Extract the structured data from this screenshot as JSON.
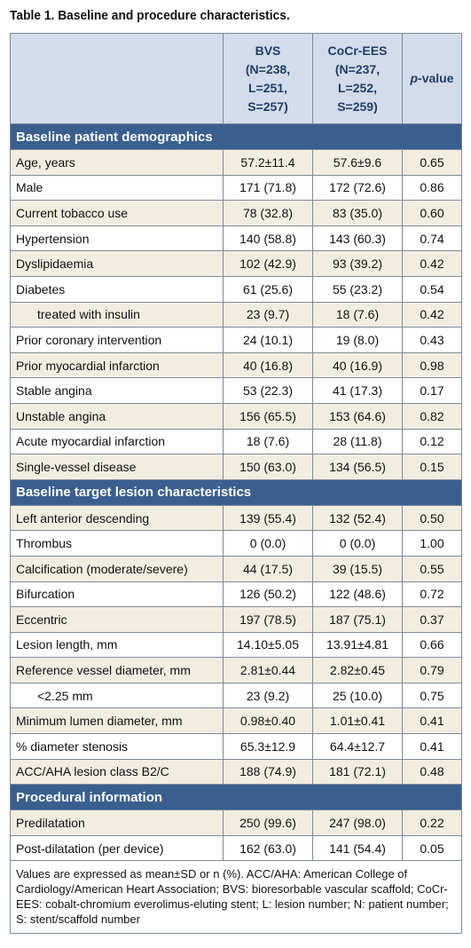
{
  "title": "Table 1. Baseline and procedure characteristics.",
  "header": {
    "col1": [
      "BVS",
      "(N=238,",
      "L=251,",
      "S=257)"
    ],
    "col2": [
      "CoCr-EES",
      "(N=237,",
      "L=252,",
      "S=259)"
    ],
    "col3_italic": "p",
    "col3_rest": "-value"
  },
  "sections": [
    {
      "title": "Baseline patient demographics",
      "rows": [
        {
          "label": "Age, years",
          "a": "57.2±11.4",
          "b": "57.6±9.6",
          "p": "0.65"
        },
        {
          "label": "Male",
          "a": "171 (71.8)",
          "b": "172 (72.6)",
          "p": "0.86"
        },
        {
          "label": "Current tobacco use",
          "a": "78 (32.8)",
          "b": "83 (35.0)",
          "p": "0.60"
        },
        {
          "label": "Hypertension",
          "a": "140 (58.8)",
          "b": "143 (60.3)",
          "p": "0.74"
        },
        {
          "label": "Dyslipidaemia",
          "a": "102 (42.9)",
          "b": "93 (39.2)",
          "p": "0.42"
        },
        {
          "label": "Diabetes",
          "a": "61 (25.6)",
          "b": "55 (23.2)",
          "p": "0.54"
        },
        {
          "label": "treated with insulin",
          "a": "23 (9.7)",
          "b": "18 (7.6)",
          "p": "0.42"
        },
        {
          "label": "Prior coronary intervention",
          "a": "24 (10.1)",
          "b": "19 (8.0)",
          "p": "0.43"
        },
        {
          "label": "Prior myocardial infarction",
          "a": "40 (16.8)",
          "b": "40 (16.9)",
          "p": "0.98"
        },
        {
          "label": "Stable angina",
          "a": "53 (22.3)",
          "b": "41 (17.3)",
          "p": "0.17"
        },
        {
          "label": "Unstable angina",
          "a": "156 (65.5)",
          "b": "153 (64.6)",
          "p": "0.82"
        },
        {
          "label": "Acute myocardial infarction",
          "a": "18 (7.6)",
          "b": "28 (11.8)",
          "p": "0.12"
        },
        {
          "label": "Single-vessel disease",
          "a": "150 (63.0)",
          "b": "134 (56.5)",
          "p": "0.15"
        }
      ]
    },
    {
      "title": "Baseline target lesion characteristics",
      "rows": [
        {
          "label": "Left anterior descending",
          "a": "139 (55.4)",
          "b": "132 (52.4)",
          "p": "0.50"
        },
        {
          "label": "Thrombus",
          "a": "0 (0.0)",
          "b": "0 (0.0)",
          "p": "1.00"
        },
        {
          "label": "Calcification (moderate/severe)",
          "a": "44 (17.5)",
          "b": "39 (15.5)",
          "p": "0.55"
        },
        {
          "label": "Bifurcation",
          "a": "126 (50.2)",
          "b": "122 (48.6)",
          "p": "0.72"
        },
        {
          "label": "Eccentric",
          "a": "197 (78.5)",
          "b": "187 (75.1)",
          "p": "0.37"
        },
        {
          "label": "Lesion length, mm",
          "a": "14.10±5.05",
          "b": "13.91±4.81",
          "p": "0.66"
        },
        {
          "label": "Reference vessel diameter, mm",
          "a": "2.81±0.44",
          "b": "2.82±0.45",
          "p": "0.79"
        },
        {
          "label": "<2.25 mm",
          "a": "23 (9.2)",
          "b": "25 (10.0)",
          "p": "0.75"
        },
        {
          "label": "Minimum lumen diameter, mm",
          "a": "0.98±0.40",
          "b": "1.01±0.41",
          "p": "0.41"
        },
        {
          "label": "% diameter stenosis",
          "a": "65.3±12.9",
          "b": "64.4±12.7",
          "p": "0.41"
        },
        {
          "label": "ACC/AHA lesion class B2/C",
          "a": "188 (74.9)",
          "b": "181 (72.1)",
          "p": "0.48"
        }
      ]
    },
    {
      "title": "Procedural information",
      "rows": [
        {
          "label": "Predilatation",
          "a": "250 (99.6)",
          "b": "247 (98.0)",
          "p": "0.22"
        },
        {
          "label": "Post-dilatation (per device)",
          "a": "162 (63.0)",
          "b": "141 (54.4)",
          "p": "0.05"
        }
      ]
    }
  ],
  "notes": "Values are expressed as mean±SD or n (%). ACC/AHA: American College of Cardiology/American Heart Association; BVS: bioresorbable vascular scaffold; CoCr-EES: cobalt-chromium everolimus-eluting stent; L: lesion number; N: patient number; S: stent/scaffold number"
}
